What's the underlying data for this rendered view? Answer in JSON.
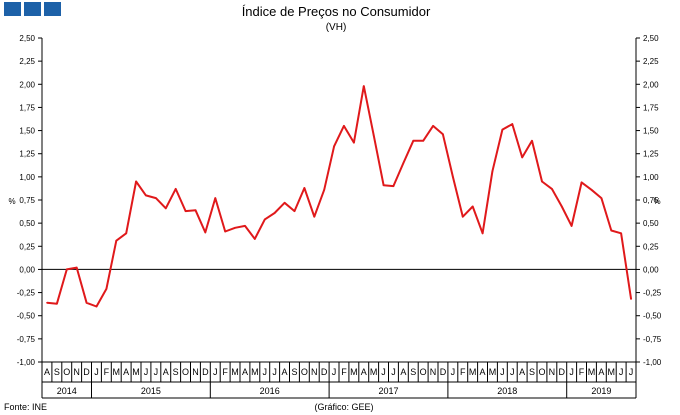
{
  "header": {
    "logo_color": "#1d61a8"
  },
  "footer": {
    "source": "Fonte: INE",
    "credit": "(Gráfico: GEE)"
  },
  "chart_data": {
    "type": "line",
    "title": "Índice de Preços no Consumidor",
    "subtitle": "(VH)",
    "ylabel": "%",
    "ylabel_right": "%",
    "ylim": [
      -1.0,
      2.5
    ],
    "yticks": [
      "2,50",
      "2,25",
      "2,00",
      "1,75",
      "1,50",
      "1,25",
      "1,00",
      "0,75",
      "0,50",
      "0,25",
      "0,00",
      "-0,25",
      "-0,50",
      "-0,75",
      "-1,00"
    ],
    "yticks_right": [
      "2,50",
      "2,25",
      "2,00",
      "1,75",
      "1,50",
      "1,25",
      "1,00",
      "0,75",
      "0,50",
      "0,25",
      "0,00",
      "-0,25",
      "-0,50",
      "-0,75",
      "-1,00"
    ],
    "categories": [
      "A",
      "S",
      "O",
      "N",
      "D",
      "J",
      "F",
      "M",
      "A",
      "M",
      "J",
      "J",
      "A",
      "S",
      "O",
      "N",
      "D",
      "J",
      "F",
      "M",
      "A",
      "M",
      "J",
      "J",
      "A",
      "S",
      "O",
      "N",
      "D",
      "J",
      "F",
      "M",
      "A",
      "M",
      "J",
      "J",
      "A",
      "S",
      "O",
      "N",
      "D",
      "J",
      "F",
      "M",
      "A",
      "M",
      "J",
      "J",
      "A",
      "S",
      "O",
      "N",
      "D",
      "J",
      "F",
      "M",
      "A",
      "M",
      "J",
      "J"
    ],
    "years": [
      {
        "label": "2014",
        "start": 0,
        "end": 4
      },
      {
        "label": "2015",
        "start": 5,
        "end": 16
      },
      {
        "label": "2016",
        "start": 17,
        "end": 28
      },
      {
        "label": "2017",
        "start": 29,
        "end": 40
      },
      {
        "label": "2018",
        "start": 41,
        "end": 52
      },
      {
        "label": "2019",
        "start": 53,
        "end": 59
      }
    ],
    "series": [
      {
        "color": "#e0191b",
        "values": [
          -0.36,
          -0.37,
          0.0,
          0.02,
          -0.36,
          -0.4,
          -0.21,
          0.31,
          0.39,
          0.95,
          0.8,
          0.77,
          0.66,
          0.87,
          0.63,
          0.64,
          0.4,
          0.77,
          0.41,
          0.45,
          0.47,
          0.33,
          0.54,
          0.61,
          0.72,
          0.63,
          0.88,
          0.57,
          0.86,
          1.33,
          1.55,
          1.37,
          1.98,
          1.45,
          0.91,
          0.9,
          1.15,
          1.39,
          1.39,
          1.55,
          1.46,
          1.0,
          0.57,
          0.68,
          0.39,
          1.06,
          1.51,
          1.57,
          1.21,
          1.39,
          0.95,
          0.87,
          0.68,
          0.47,
          0.94,
          0.86,
          0.77,
          0.42,
          0.39,
          -0.32
        ]
      }
    ],
    "grid": false,
    "zero_line": true
  }
}
